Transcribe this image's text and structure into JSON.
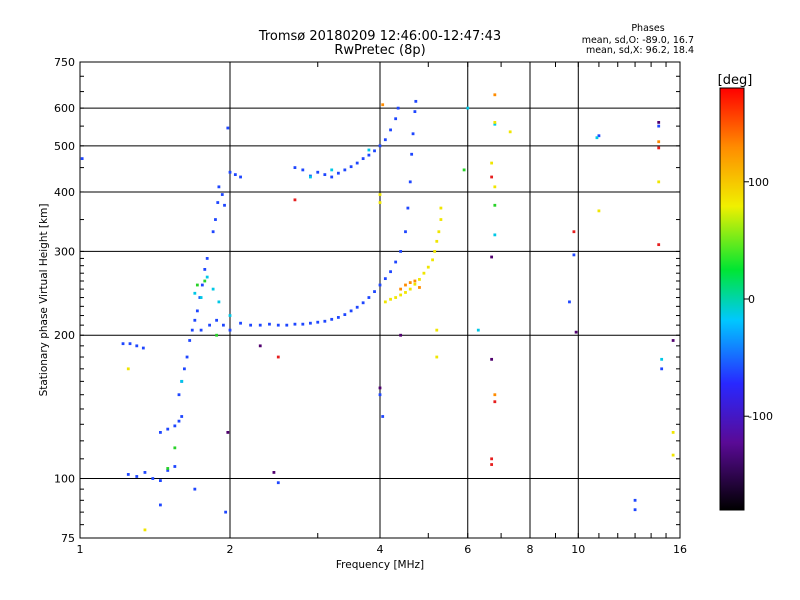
{
  "chart_data": {
    "type": "scatter",
    "title": "Tromsø 20180209 12:46:00-12:47:43",
    "subtitle": "RwPretec (8p)",
    "xlabel": "Frequency [MHz]",
    "ylabel": "Stationary phase Virtual Height [km]",
    "xscale": "log",
    "yscale": "log",
    "xlim": [
      1,
      16
    ],
    "ylim": [
      75,
      750
    ],
    "x_ticks": [
      1,
      2,
      4,
      6,
      8,
      10,
      16
    ],
    "x_tick_labels": [
      "1",
      "2",
      "4",
      "6",
      "8",
      "10",
      "16"
    ],
    "y_ticks": [
      75,
      100,
      200,
      300,
      400,
      500,
      600,
      750
    ],
    "y_tick_labels": [
      "75",
      "100",
      "200",
      "300",
      "400",
      "500",
      "600",
      "750"
    ],
    "grid": true,
    "info_panel": {
      "heading": "Phases",
      "line1": "mean, sd,O: -89.0, 16.7",
      "line2": "mean, sd,X:  96.2, 18.4"
    },
    "colorbar": {
      "label": "[deg]",
      "range": [
        -180,
        180
      ],
      "ticks": [
        100,
        0,
        -100
      ],
      "tick_labels": [
        "100",
        "0",
        "-100"
      ]
    },
    "series": [
      {
        "mode": "O",
        "phase_deg": -100,
        "color": "#1e46ff",
        "points": [
          [
            1.01,
            470
          ],
          [
            1.22,
            192
          ],
          [
            1.26,
            192
          ],
          [
            1.3,
            190
          ],
          [
            1.34,
            188
          ],
          [
            1.25,
            102
          ],
          [
            1.3,
            101
          ],
          [
            1.35,
            103
          ],
          [
            1.4,
            100
          ],
          [
            1.45,
            99
          ],
          [
            1.5,
            104
          ],
          [
            1.55,
            106
          ],
          [
            1.45,
            125
          ],
          [
            1.5,
            127
          ],
          [
            1.55,
            129
          ],
          [
            1.58,
            132
          ],
          [
            1.6,
            135
          ],
          [
            1.58,
            150
          ],
          [
            1.6,
            160
          ],
          [
            1.62,
            170
          ],
          [
            1.64,
            180
          ],
          [
            1.66,
            195
          ],
          [
            1.68,
            205
          ],
          [
            1.7,
            215
          ],
          [
            1.72,
            225
          ],
          [
            1.74,
            240
          ],
          [
            1.76,
            255
          ],
          [
            1.78,
            275
          ],
          [
            1.8,
            290
          ],
          [
            1.75,
            205
          ],
          [
            1.82,
            210
          ],
          [
            1.88,
            215
          ],
          [
            1.94,
            210
          ],
          [
            2.0,
            205
          ],
          [
            1.85,
            330
          ],
          [
            1.87,
            350
          ],
          [
            1.89,
            380
          ],
          [
            1.9,
            410
          ],
          [
            1.93,
            395
          ],
          [
            1.95,
            375
          ],
          [
            2.0,
            440
          ],
          [
            2.05,
            435
          ],
          [
            2.1,
            430
          ],
          [
            1.98,
            545
          ],
          [
            1.96,
            85
          ],
          [
            2.1,
            212
          ],
          [
            2.2,
            210
          ],
          [
            2.3,
            210
          ],
          [
            2.4,
            211
          ],
          [
            2.5,
            210
          ],
          [
            2.6,
            210
          ],
          [
            2.7,
            211
          ],
          [
            2.8,
            211
          ],
          [
            2.9,
            212
          ],
          [
            3.0,
            213
          ],
          [
            3.1,
            214
          ],
          [
            3.2,
            216
          ],
          [
            3.3,
            218
          ],
          [
            3.4,
            221
          ],
          [
            3.5,
            225
          ],
          [
            3.6,
            229
          ],
          [
            3.7,
            234
          ],
          [
            3.8,
            240
          ],
          [
            3.9,
            247
          ],
          [
            4.0,
            255
          ],
          [
            4.1,
            263
          ],
          [
            4.2,
            272
          ],
          [
            4.3,
            285
          ],
          [
            4.4,
            300
          ],
          [
            4.5,
            330
          ],
          [
            4.55,
            370
          ],
          [
            4.6,
            420
          ],
          [
            4.63,
            480
          ],
          [
            4.66,
            530
          ],
          [
            4.7,
            590
          ],
          [
            4.72,
            620
          ],
          [
            2.7,
            450
          ],
          [
            2.8,
            445
          ],
          [
            2.9,
            432
          ],
          [
            3.0,
            440
          ],
          [
            3.1,
            435
          ],
          [
            3.2,
            430
          ],
          [
            3.3,
            438
          ],
          [
            3.4,
            445
          ],
          [
            3.5,
            452
          ],
          [
            3.6,
            460
          ],
          [
            3.7,
            470
          ],
          [
            3.8,
            478
          ],
          [
            3.9,
            488
          ],
          [
            4.0,
            500
          ],
          [
            4.1,
            515
          ],
          [
            4.2,
            540
          ],
          [
            4.3,
            570
          ],
          [
            4.35,
            600
          ],
          [
            1.45,
            88
          ],
          [
            1.7,
            95
          ],
          [
            2.5,
            98
          ],
          [
            4.0,
            150
          ],
          [
            4.05,
            135
          ],
          [
            9.8,
            295
          ],
          [
            9.6,
            235
          ],
          [
            11.0,
            525
          ],
          [
            13.0,
            90
          ],
          [
            13.0,
            86
          ],
          [
            14.5,
            550
          ],
          [
            14.7,
            170
          ]
        ]
      },
      {
        "mode": "O",
        "phase_deg": -40,
        "color": "#00c8e6",
        "points": [
          [
            1.6,
            160
          ],
          [
            1.7,
            245
          ],
          [
            1.75,
            240
          ],
          [
            1.8,
            265
          ],
          [
            1.85,
            250
          ],
          [
            1.9,
            235
          ],
          [
            2.0,
            220
          ],
          [
            2.9,
            430
          ],
          [
            3.2,
            445
          ],
          [
            3.8,
            490
          ],
          [
            6.0,
            600
          ],
          [
            6.3,
            205
          ],
          [
            6.8,
            325
          ],
          [
            6.8,
            555
          ],
          [
            10.9,
            520
          ],
          [
            14.7,
            178
          ]
        ]
      },
      {
        "mode": "O",
        "phase_deg": 0,
        "color": "#28d228",
        "points": [
          [
            1.5,
            105
          ],
          [
            1.55,
            116
          ],
          [
            1.72,
            255
          ],
          [
            1.78,
            260
          ],
          [
            1.88,
            200
          ],
          [
            5.9,
            445
          ],
          [
            6.8,
            375
          ]
        ]
      },
      {
        "mode": "X",
        "phase_deg": 100,
        "color": "#f0e600",
        "points": [
          [
            4.1,
            235
          ],
          [
            4.2,
            238
          ],
          [
            4.3,
            240
          ],
          [
            4.4,
            243
          ],
          [
            4.5,
            246
          ],
          [
            4.6,
            250
          ],
          [
            4.7,
            256
          ],
          [
            4.8,
            262
          ],
          [
            4.9,
            270
          ],
          [
            5.0,
            278
          ],
          [
            5.1,
            288
          ],
          [
            5.15,
            300
          ],
          [
            5.2,
            315
          ],
          [
            5.25,
            330
          ],
          [
            5.3,
            350
          ],
          [
            5.3,
            370
          ],
          [
            4.0,
            395
          ],
          [
            4.0,
            380
          ],
          [
            5.2,
            180
          ],
          [
            5.2,
            205
          ],
          [
            6.7,
            460
          ],
          [
            6.8,
            560
          ],
          [
            6.8,
            410
          ],
          [
            7.3,
            535
          ],
          [
            11.0,
            365
          ],
          [
            14.5,
            420
          ],
          [
            15.5,
            125
          ],
          [
            15.5,
            112
          ],
          [
            1.25,
            170
          ],
          [
            1.35,
            78
          ]
        ]
      },
      {
        "mode": "X",
        "phase_deg": 145,
        "color": "#ff8c00",
        "points": [
          [
            4.5,
            255
          ],
          [
            4.6,
            258
          ],
          [
            4.7,
            260
          ],
          [
            4.8,
            252
          ],
          [
            4.4,
            250
          ],
          [
            4.05,
            610
          ],
          [
            6.8,
            640
          ],
          [
            6.8,
            150
          ],
          [
            14.5,
            510
          ]
        ]
      },
      {
        "mode": "X",
        "phase_deg": 175,
        "color": "#e61e1e",
        "points": [
          [
            2.7,
            385
          ],
          [
            2.5,
            180
          ],
          [
            6.7,
            430
          ],
          [
            6.7,
            110
          ],
          [
            6.7,
            107
          ],
          [
            6.8,
            145
          ],
          [
            9.8,
            330
          ],
          [
            14.5,
            495
          ],
          [
            14.5,
            310
          ]
        ]
      },
      {
        "mode": "X",
        "phase_deg": -150,
        "color": "#50006e",
        "points": [
          [
            1.98,
            125
          ],
          [
            2.45,
            103
          ],
          [
            4.0,
            155
          ],
          [
            4.4,
            200
          ],
          [
            6.7,
            292
          ],
          [
            6.7,
            178
          ],
          [
            9.9,
            203
          ],
          [
            14.5,
            560
          ],
          [
            15.5,
            195
          ],
          [
            2.3,
            190
          ]
        ]
      }
    ]
  }
}
